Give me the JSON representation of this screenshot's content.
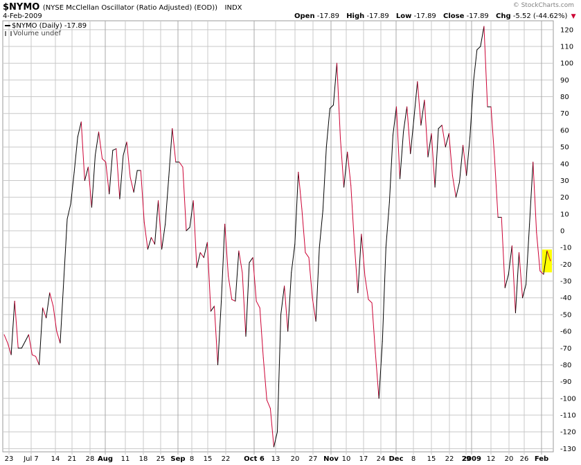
{
  "header": {
    "symbol": "$NYMO",
    "description": "(NYSE McClellan Oscillator (Ratio Adjusted) (EOD))",
    "exchange": "INDX",
    "date": "4-Feb-2009",
    "copyright": "© StockCharts.com",
    "open_label": "Open",
    "open_value": "-17.89",
    "high_label": "High",
    "high_value": "-17.89",
    "low_label": "Low",
    "low_value": "-17.89",
    "close_label": "Close",
    "close_value": "-17.89",
    "chg_label": "Chg",
    "chg_value": "-5.52 (-44.62%)",
    "chg_arrow": "▼"
  },
  "legend": {
    "series": "$NYMO (Daily) -17.89",
    "volume": "Volume undef"
  },
  "colors": {
    "up": "#000000",
    "down": "#cc0033",
    "grid": "#c8c8c8",
    "highlight": "#ffff00"
  },
  "chart_data": {
    "type": "line",
    "title": "$NYMO (NYSE McClellan Oscillator (Ratio Adjusted) (EOD))",
    "series": [
      {
        "name": "$NYMO (Daily)",
        "values": [
          -62,
          -67,
          -74,
          -42,
          -70,
          -70,
          -66,
          -62,
          -74,
          -75,
          -80,
          -46,
          -52,
          -37,
          -45,
          -60,
          -67,
          -30,
          7,
          16,
          35,
          56,
          65,
          30,
          38,
          14,
          45,
          59,
          43,
          41,
          22,
          48,
          49,
          19,
          45,
          53,
          32,
          23,
          36,
          36,
          5,
          -11,
          -4,
          -8,
          18,
          -11,
          4,
          32,
          61,
          41,
          41,
          38,
          0,
          2,
          18,
          -22,
          -13,
          -16,
          -7,
          -48,
          -45,
          -80,
          -42,
          4,
          -27,
          -41,
          -42,
          -12,
          -25,
          -63,
          -19,
          -16,
          -42,
          -46,
          -76,
          -101,
          -106,
          -129,
          -120,
          -50,
          -33,
          -60,
          -25,
          -8,
          35,
          13,
          -13,
          -16,
          -40,
          -54,
          -10,
          12,
          50,
          73,
          75,
          100,
          55,
          26,
          47,
          27,
          -8,
          -37,
          -2,
          -27,
          -41,
          -43,
          -73,
          -100,
          -66,
          -10,
          17,
          57,
          74,
          31,
          59,
          74,
          46,
          67,
          89,
          63,
          78,
          44,
          58,
          26,
          61,
          63,
          50,
          58,
          33,
          20,
          29,
          51,
          33,
          56,
          89,
          108,
          110,
          122,
          74,
          74,
          44,
          8,
          8,
          -34,
          -26,
          -9,
          -49,
          -13,
          -40,
          -32,
          4,
          41,
          -1,
          -24,
          -26,
          -12,
          -18
        ]
      }
    ],
    "x_tick_labels": [
      "23",
      "Jul 7",
      "14",
      "21",
      "28",
      "Aug",
      "11",
      "18",
      "25",
      "Sep",
      "8",
      "15",
      "22",
      "Oct 6",
      "13",
      "20",
      "27",
      "Nov",
      "10",
      "17",
      "24",
      "Dec",
      "8",
      "15",
      "22",
      "29",
      "2009",
      "12",
      "20",
      "26",
      "Feb"
    ],
    "bold_x_tick_labels": [
      "Aug",
      "Sep",
      "Oct 6",
      "Nov",
      "Dec",
      "2009",
      "Feb"
    ],
    "y_tick_labels": [
      "120",
      "110",
      "100",
      "90",
      "80",
      "70",
      "60",
      "50",
      "40",
      "30",
      "20",
      "10",
      "0",
      "-10",
      "-20",
      "-30",
      "-40",
      "-50",
      "-60",
      "-70",
      "-80",
      "-90",
      "-100",
      "-110",
      "-120",
      "-130"
    ],
    "ylim": [
      -134,
      124
    ],
    "last_value": -17.89,
    "grid": true,
    "axis_position": "right"
  }
}
